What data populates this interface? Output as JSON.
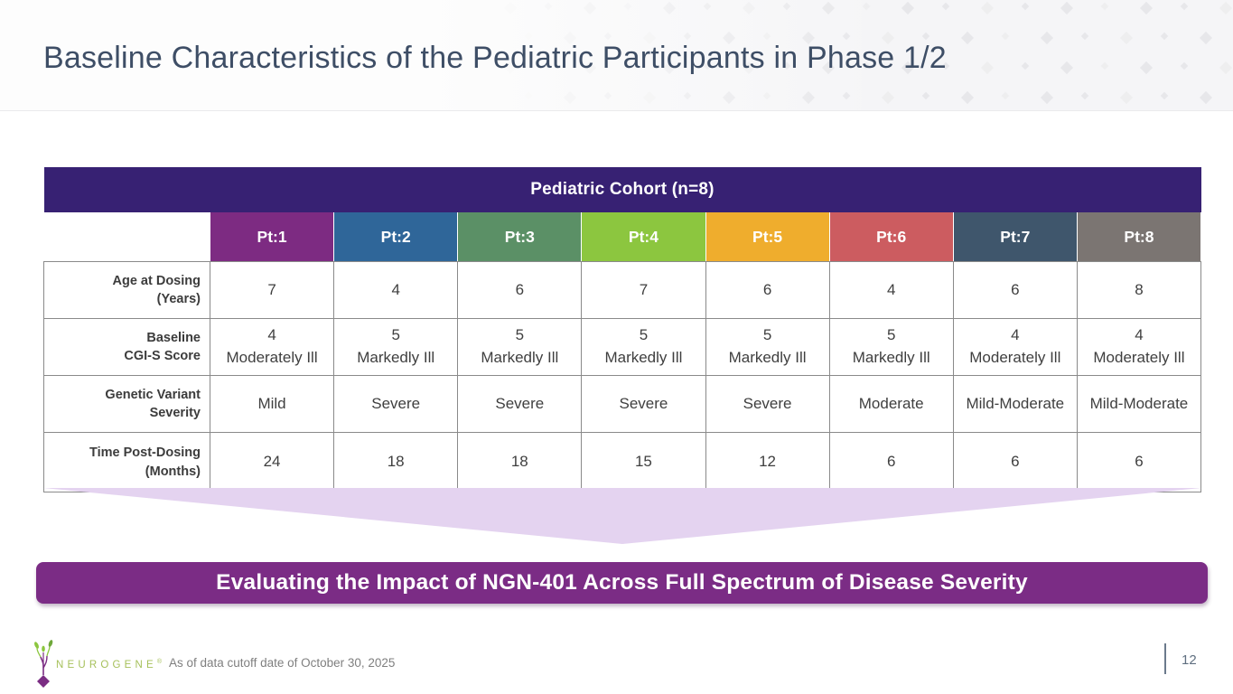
{
  "slide": {
    "title": "Baseline Characteristics of the Pediatric Participants in Phase 1/2"
  },
  "table": {
    "header": "Pediatric Cohort (n=8)",
    "header_bg": "#372173",
    "patients": [
      {
        "label": "Pt:1",
        "color": "#7d2b82"
      },
      {
        "label": "Pt:2",
        "color": "#2f6699"
      },
      {
        "label": "Pt:3",
        "color": "#5b9066"
      },
      {
        "label": "Pt:4",
        "color": "#8cc63f"
      },
      {
        "label": "Pt:5",
        "color": "#efad2d"
      },
      {
        "label": "Pt:6",
        "color": "#cc5c60"
      },
      {
        "label": "Pt:7",
        "color": "#3f566c"
      },
      {
        "label": "Pt:8",
        "color": "#7b7572"
      }
    ],
    "rows": [
      {
        "label": "Age at Dosing\n(Years)",
        "values": [
          "7",
          "4",
          "6",
          "7",
          "6",
          "4",
          "6",
          "8"
        ]
      },
      {
        "label": "Baseline\nCGI-S Score",
        "values": [
          "4\nModerately Ill",
          "5\nMarkedly Ill",
          "5\nMarkedly Ill",
          "5\nMarkedly Ill",
          "5\nMarkedly Ill",
          "5\nMarkedly Ill",
          "4\nModerately Ill",
          "4\nModerately Ill"
        ]
      },
      {
        "label": "Genetic Variant\nSeverity",
        "values": [
          "Mild",
          "Severe",
          "Severe",
          "Severe",
          "Severe",
          "Moderate",
          "Mild-Moderate",
          "Mild-Moderate"
        ]
      },
      {
        "label": "Time Post-Dosing\n(Months)",
        "values": [
          "24",
          "18",
          "18",
          "15",
          "12",
          "6",
          "6",
          "6"
        ]
      }
    ]
  },
  "banner": {
    "text": "Evaluating the Impact of NGN-401 Across Full Spectrum of Disease Severity",
    "color": "#7b2c85"
  },
  "footer": {
    "logo_text": "NEUROGENE",
    "logo_reg": "®",
    "note": "As of data cutoff date of October 30, 2025",
    "page_number": "12"
  },
  "colors": {
    "title_text": "#3e4e66",
    "funnel": "#e4d3f0",
    "table_border": "#8a8a8a",
    "logo_green": "#8cc63f",
    "logo_purple": "#7b2d83"
  }
}
